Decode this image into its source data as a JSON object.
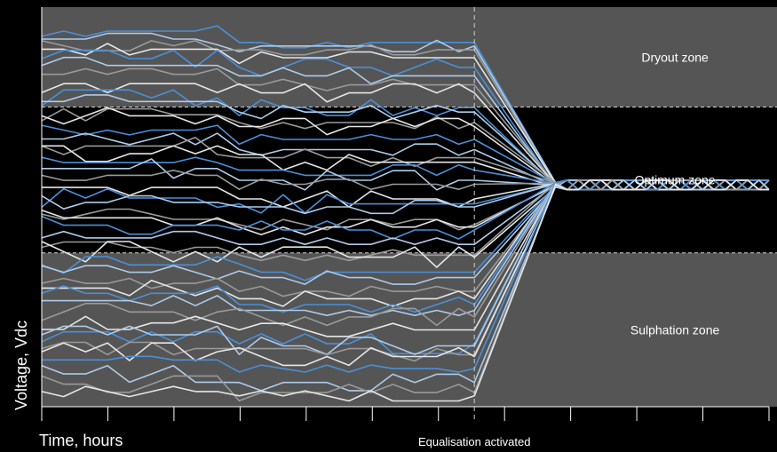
{
  "chart_data": {
    "type": "line",
    "title": "",
    "xlabel": "Time, hours",
    "ylabel": "Voltage, Vdc",
    "x_tick_count": 12,
    "event": {
      "label": "Equalisation activated",
      "x": 6.9
    },
    "zones": [
      {
        "name": "Dryout zone",
        "y_from": 1.0,
        "y_to": 0.75,
        "color": "#555555"
      },
      {
        "name": "Optimum zone",
        "y_from": 0.75,
        "y_to": 0.385,
        "color": "#000000"
      },
      {
        "name": "Sulphation zone",
        "y_from": 0.385,
        "y_to": 0.0,
        "color": "#555555"
      }
    ],
    "converge": {
      "x": 8.2,
      "y": 0.555,
      "x_end": 11.6
    },
    "colors": {
      "blue": "#4a90d9",
      "lightblue": "#aecbe8",
      "grey": "#9a9a9a",
      "white": "#e6e6e6",
      "divider": "#cfcfcf"
    },
    "x_range": [
      0,
      11.6
    ],
    "y_range": [
      0,
      1
    ],
    "series_count": 44
  }
}
